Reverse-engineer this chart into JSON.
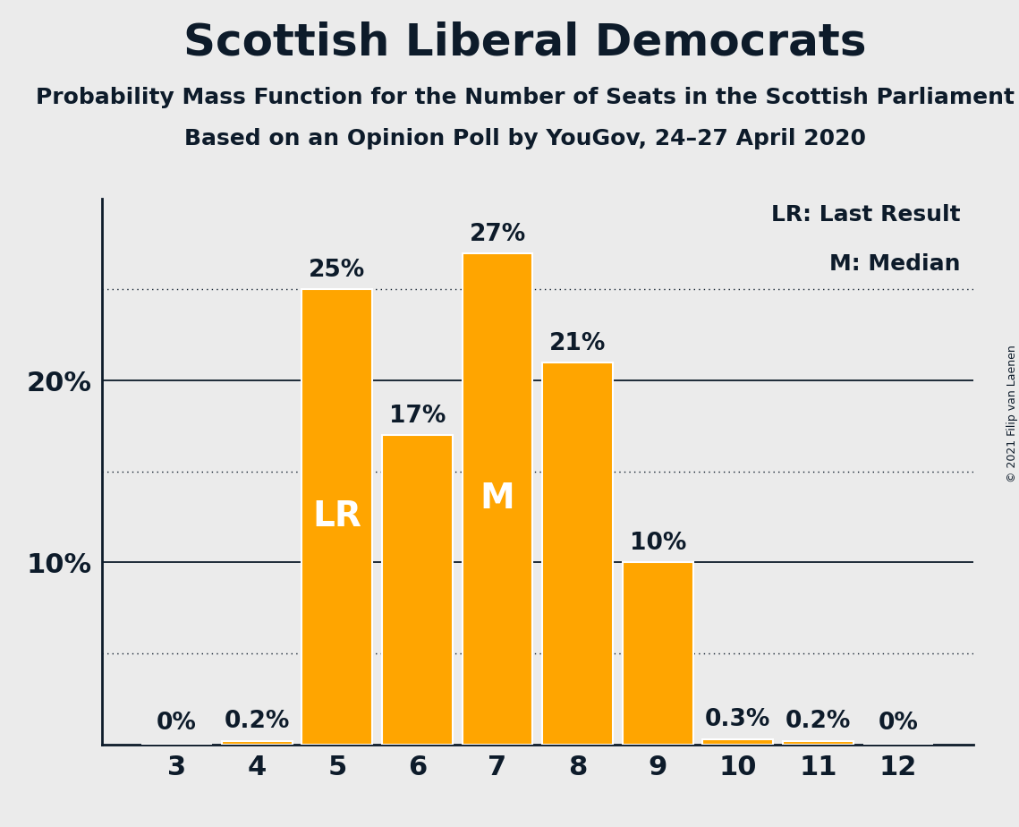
{
  "title": "Scottish Liberal Democrats",
  "subtitle1": "Probability Mass Function for the Number of Seats in the Scottish Parliament",
  "subtitle2": "Based on an Opinion Poll by YouGov, 24–27 April 2020",
  "copyright": "© 2021 Filip van Laenen",
  "categories": [
    3,
    4,
    5,
    6,
    7,
    8,
    9,
    10,
    11,
    12
  ],
  "values": [
    0.0,
    0.2,
    25.0,
    17.0,
    27.0,
    21.0,
    10.0,
    0.3,
    0.2,
    0.0
  ],
  "bar_color": "#FFA500",
  "background_color": "#EBEBEB",
  "text_color": "#0d1b2a",
  "ylim": [
    0,
    30
  ],
  "yticks": [
    10,
    20
  ],
  "ytick_labels": [
    "10%",
    "20%"
  ],
  "dotted_lines": [
    5,
    15,
    25
  ],
  "solid_lines": [
    10,
    20
  ],
  "lr_bar": 5,
  "median_bar": 7,
  "legend_lr": "LR: Last Result",
  "legend_m": "M: Median",
  "title_fontsize": 36,
  "subtitle_fontsize": 18,
  "axis_fontsize": 22,
  "bar_label_fontsize": 19,
  "bar_marker_fontsize": 28,
  "legend_fontsize": 18,
  "copyright_fontsize": 9
}
